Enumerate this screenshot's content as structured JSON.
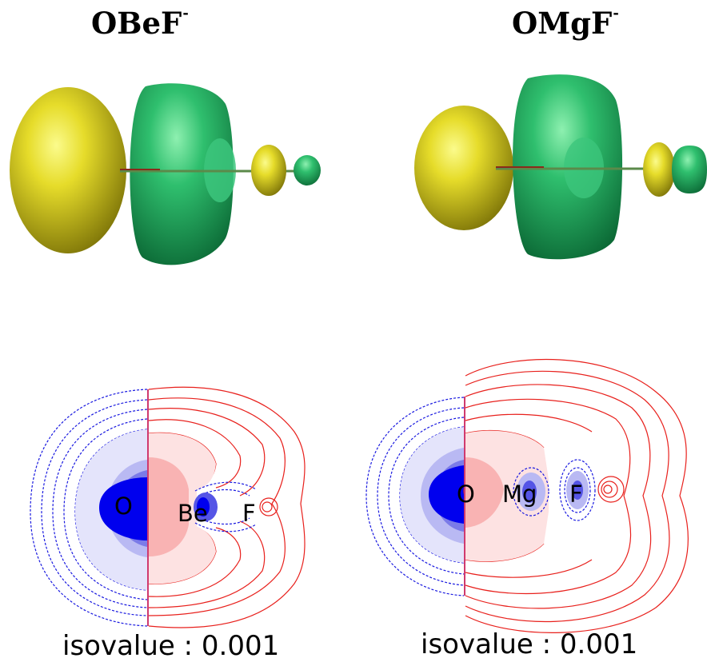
{
  "panels": [
    {
      "molecule": "OBeF",
      "charge": "-",
      "atoms": [
        "O",
        "Be",
        "F"
      ],
      "isovalue_text": "isovalue : 0.001"
    },
    {
      "molecule": "OMgF",
      "charge": "-",
      "atoms": [
        "O",
        "Mg",
        "F"
      ],
      "isovalue_text": "isovalue : 0.001"
    }
  ],
  "colors": {
    "lobe_positive": "#d6cc1c",
    "lobe_negative": "#2bb46a",
    "contour_positive": "#e8201c",
    "contour_negative": "#1a1ae0",
    "fill_negative_core": "#0000ee"
  }
}
